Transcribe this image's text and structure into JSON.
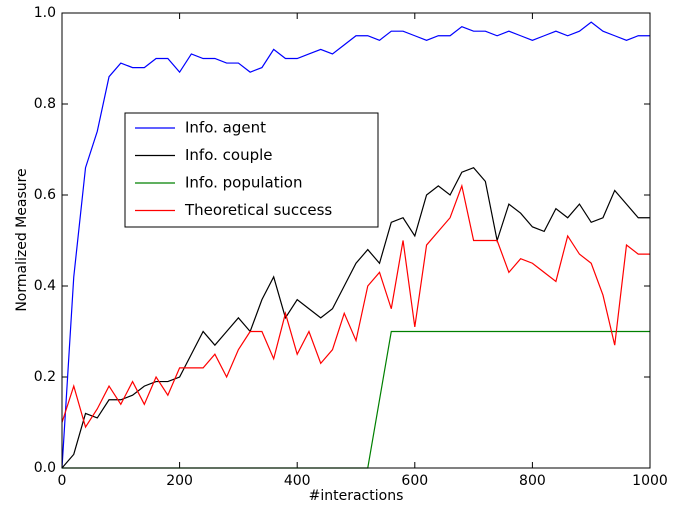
{
  "chart_data": {
    "type": "line",
    "xlabel": "#interactions",
    "ylabel": "Normalized Measure",
    "x": [
      0,
      20,
      40,
      60,
      80,
      100,
      120,
      140,
      160,
      180,
      200,
      220,
      240,
      260,
      280,
      300,
      320,
      340,
      360,
      380,
      400,
      420,
      440,
      460,
      480,
      500,
      520,
      540,
      560,
      580,
      600,
      620,
      640,
      660,
      680,
      700,
      720,
      740,
      760,
      780,
      800,
      820,
      840,
      860,
      880,
      900,
      920,
      940,
      960,
      980,
      1000
    ],
    "series": [
      {
        "name": "Info. agent",
        "color": "#0000ff",
        "values": [
          0.0,
          0.42,
          0.66,
          0.74,
          0.86,
          0.89,
          0.88,
          0.88,
          0.9,
          0.9,
          0.87,
          0.91,
          0.9,
          0.9,
          0.89,
          0.89,
          0.87,
          0.88,
          0.92,
          0.9,
          0.9,
          0.91,
          0.92,
          0.91,
          0.93,
          0.95,
          0.95,
          0.94,
          0.96,
          0.96,
          0.95,
          0.94,
          0.95,
          0.95,
          0.97,
          0.96,
          0.96,
          0.95,
          0.96,
          0.95,
          0.94,
          0.95,
          0.96,
          0.95,
          0.96,
          0.98,
          0.96,
          0.95,
          0.94,
          0.95,
          0.95
        ]
      },
      {
        "name": "Info. couple",
        "color": "#000000",
        "values": [
          0.0,
          0.03,
          0.12,
          0.11,
          0.15,
          0.15,
          0.16,
          0.18,
          0.19,
          0.19,
          0.2,
          0.25,
          0.3,
          0.27,
          0.3,
          0.33,
          0.3,
          0.37,
          0.42,
          0.33,
          0.37,
          0.35,
          0.33,
          0.35,
          0.4,
          0.45,
          0.48,
          0.45,
          0.54,
          0.55,
          0.51,
          0.6,
          0.62,
          0.6,
          0.65,
          0.66,
          0.63,
          0.5,
          0.58,
          0.56,
          0.53,
          0.52,
          0.57,
          0.55,
          0.58,
          0.54,
          0.55,
          0.61,
          0.58,
          0.55,
          0.55
        ]
      },
      {
        "name": "Info. population",
        "color": "#008000",
        "values": [
          0,
          0,
          0,
          0,
          0,
          0,
          0,
          0,
          0,
          0,
          0,
          0,
          0,
          0,
          0,
          0,
          0,
          0,
          0,
          0,
          0,
          0,
          0,
          0,
          0,
          0,
          0,
          0.15,
          0.3,
          0.3,
          0.3,
          0.3,
          0.3,
          0.3,
          0.3,
          0.3,
          0.3,
          0.3,
          0.3,
          0.3,
          0.3,
          0.3,
          0.3,
          0.3,
          0.3,
          0.3,
          0.3,
          0.3,
          0.3,
          0.3,
          0.3
        ]
      },
      {
        "name": "Theoretical success",
        "color": "#ff0000",
        "values": [
          0.1,
          0.18,
          0.09,
          0.13,
          0.18,
          0.14,
          0.19,
          0.14,
          0.2,
          0.16,
          0.22,
          0.22,
          0.22,
          0.25,
          0.2,
          0.26,
          0.3,
          0.3,
          0.24,
          0.34,
          0.25,
          0.3,
          0.23,
          0.26,
          0.34,
          0.28,
          0.4,
          0.43,
          0.35,
          0.5,
          0.31,
          0.49,
          0.52,
          0.55,
          0.62,
          0.5,
          0.5,
          0.5,
          0.43,
          0.46,
          0.45,
          0.43,
          0.41,
          0.51,
          0.47,
          0.45,
          0.38,
          0.27,
          0.49,
          0.47,
          0.47
        ]
      }
    ],
    "xlim": [
      0,
      1000
    ],
    "xticks": [
      0,
      200,
      400,
      600,
      800,
      1000
    ],
    "ylim": [
      0,
      1
    ],
    "yticks": [
      {
        "value": 0,
        "label": "0.0"
      },
      {
        "value": 0.2,
        "label": "0.2"
      },
      {
        "value": 0.4,
        "label": "0.4"
      },
      {
        "value": 0.6,
        "label": "0.6"
      },
      {
        "value": 0.8,
        "label": "0.8"
      },
      {
        "value": 1,
        "label": "1.0"
      }
    ],
    "legend": "upper left",
    "grid": false
  }
}
